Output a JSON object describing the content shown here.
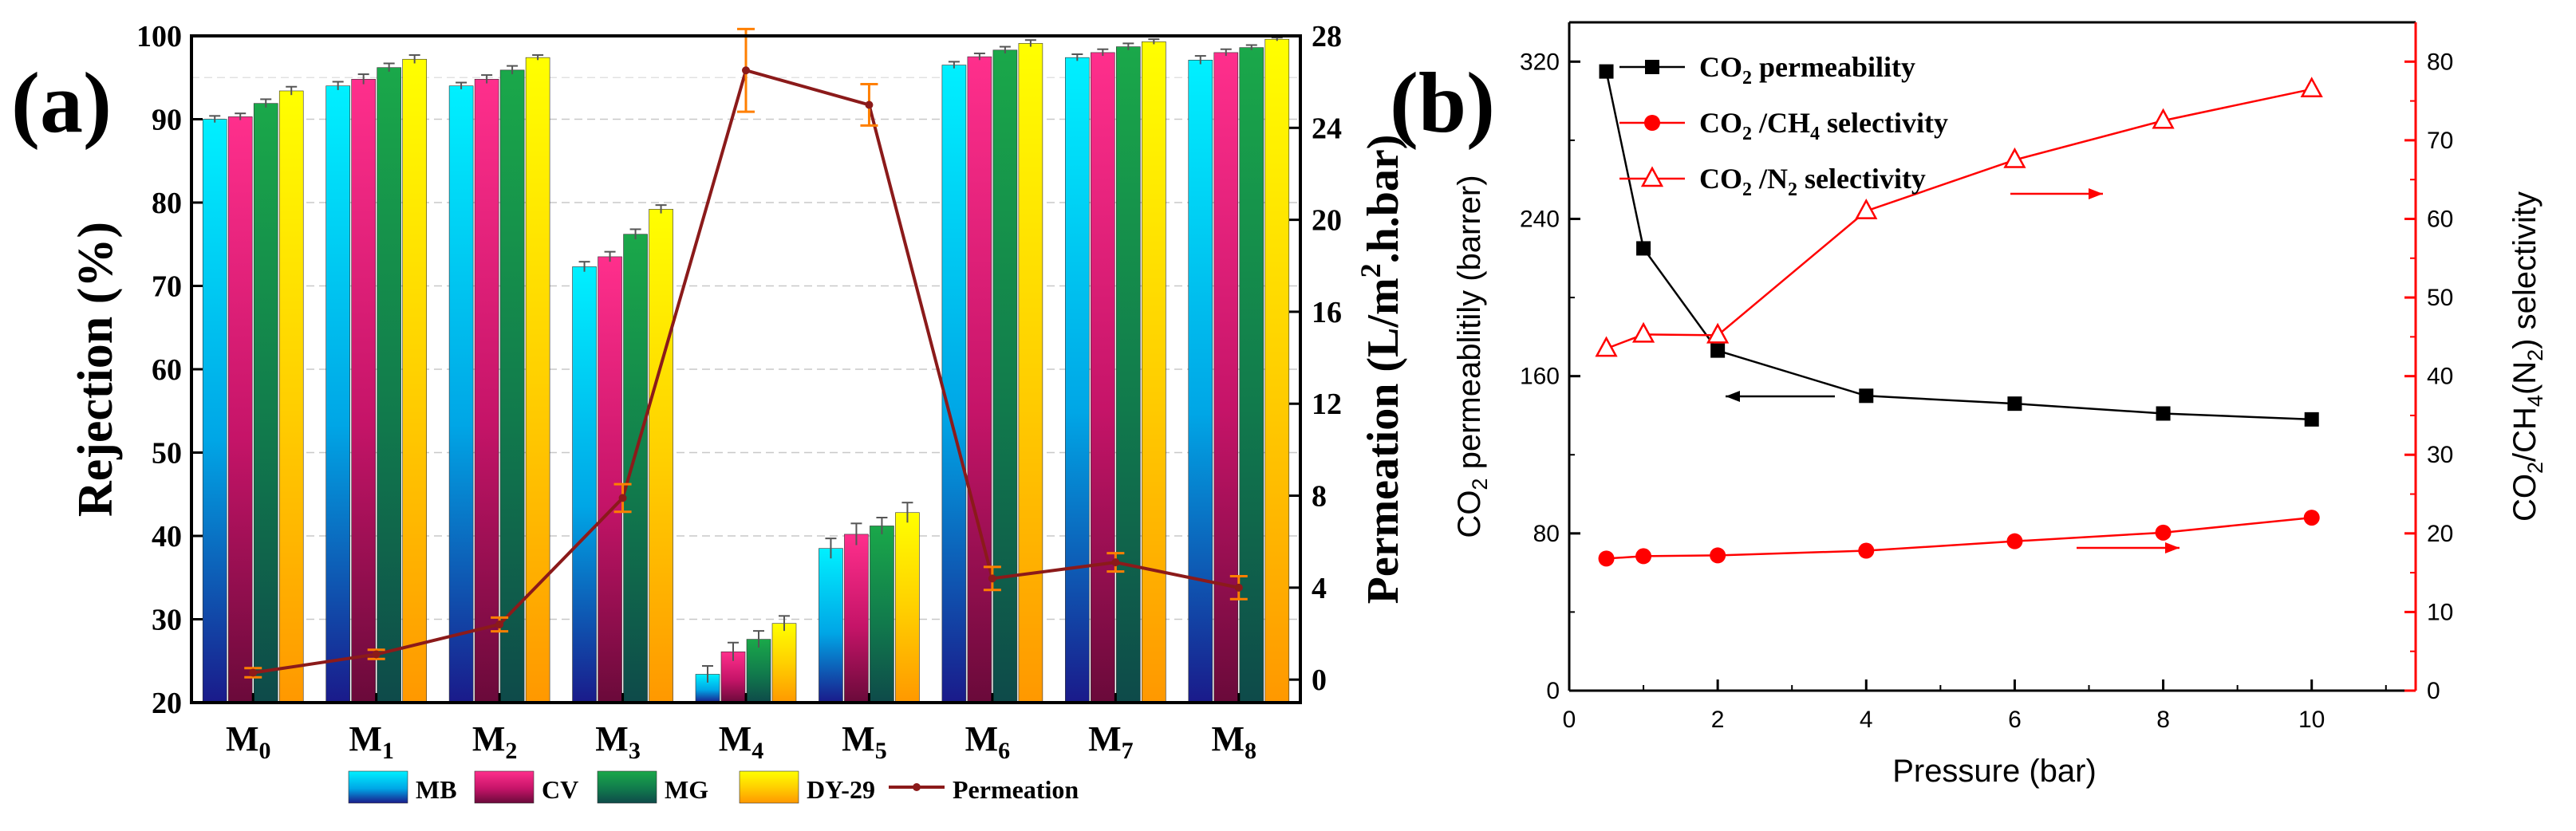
{
  "chart_data": [
    {
      "panel_label": "(a)",
      "type": "bar",
      "categories": [
        "M",
        "M",
        "M",
        "M",
        "M",
        "M",
        "M",
        "M",
        "M"
      ],
      "category_subscripts": [
        "0",
        "1",
        "2",
        "3",
        "4",
        "5",
        "6",
        "7",
        "8"
      ],
      "ylabel": "Rejection (%)",
      "ylim": [
        20,
        100
      ],
      "yticks": [
        20,
        30,
        40,
        50,
        60,
        70,
        80,
        90,
        100
      ],
      "y2label_parts": [
        "Permeation (L/m",
        "2",
        ".h.bar)"
      ],
      "y2lim": [
        -1,
        28
      ],
      "y2ticks": [
        0,
        4,
        8,
        12,
        16,
        20,
        24,
        28
      ],
      "series": [
        {
          "name": "MB",
          "values": [
            90,
            94,
            94,
            72.3,
            23.4,
            38.5,
            96.5,
            97.4,
            97.1
          ],
          "errors": [
            0.4,
            0.5,
            0.4,
            0.6,
            1.0,
            1.2,
            0.4,
            0.4,
            0.5
          ],
          "color_top": "#00f0ff",
          "color_bottom": "#1a1a8a"
        },
        {
          "name": "CV",
          "values": [
            90.3,
            94.8,
            94.8,
            73.5,
            26.1,
            40.2,
            97.5,
            98,
            98
          ],
          "errors": [
            0.4,
            0.6,
            0.5,
            0.6,
            1.1,
            1.3,
            0.4,
            0.4,
            0.4
          ],
          "color_top": "#ff2f8c",
          "color_bottom": "#6a0a3a"
        },
        {
          "name": "MG",
          "values": [
            91.9,
            96.2,
            95.9,
            76.2,
            27.6,
            41.2,
            98.3,
            98.7,
            98.6
          ],
          "errors": [
            0.5,
            0.5,
            0.5,
            0.6,
            1.0,
            1.0,
            0.4,
            0.4,
            0.3
          ],
          "color_top": "#1aa84a",
          "color_bottom": "#0e4a4a"
        },
        {
          "name": "DY-29",
          "values": [
            93.4,
            97.2,
            97.4,
            79.2,
            29.5,
            42.8,
            99.1,
            99.3,
            99.6
          ],
          "errors": [
            0.5,
            0.5,
            0.3,
            0.5,
            0.9,
            1.2,
            0.4,
            0.3,
            0.2
          ],
          "color_top": "#ffff00",
          "color_bottom": "#ff9800"
        }
      ],
      "line": {
        "name": "Permeation",
        "values": [
          0.3,
          1.1,
          2.4,
          7.9,
          26.5,
          25.0,
          4.4,
          5.1,
          4.0
        ],
        "errors": [
          0.2,
          0.2,
          0.3,
          0.6,
          1.8,
          0.9,
          0.5,
          0.4,
          0.5
        ],
        "color": "#8b1a1a",
        "errcolor": "#ff7f00"
      },
      "legend": [
        "MB",
        "CV",
        "MG",
        "DY-29",
        "Permeation"
      ]
    },
    {
      "panel_label": "(b)",
      "type": "line",
      "xlabel": "Pressure (bar)",
      "xlim": [
        0,
        11.4
      ],
      "xticks": [
        0,
        2,
        4,
        6,
        8,
        10
      ],
      "ylabel_parts": [
        "CO",
        "2",
        " permeablitily (barrer)"
      ],
      "ylim": [
        0,
        340
      ],
      "yticks": [
        0,
        80,
        160,
        240,
        320
      ],
      "y2label_parts": [
        "CO",
        "2",
        "/CH",
        "4",
        "(N",
        "2",
        ") selectivity"
      ],
      "y2lim": [
        0,
        85
      ],
      "y2ticks": [
        0,
        10,
        20,
        30,
        40,
        50,
        60,
        70,
        80
      ],
      "series": [
        {
          "name_parts": [
            "CO",
            "2",
            " permeability"
          ],
          "axis": "left",
          "marker": "square",
          "color": "#000000",
          "x": [
            0.5,
            1,
            2,
            4,
            6,
            8,
            10
          ],
          "y": [
            315,
            225,
            173,
            150,
            146,
            141,
            138
          ]
        },
        {
          "name_parts": [
            "CO",
            "2",
            " /CH",
            "4",
            " selectivity"
          ],
          "axis": "right",
          "marker": "circle",
          "color": "#ff0000",
          "x": [
            0.5,
            1,
            2,
            4,
            6,
            8,
            10
          ],
          "y": [
            16.8,
            17.1,
            17.2,
            17.8,
            19,
            20.1,
            22
          ]
        },
        {
          "name_parts": [
            "CO",
            "2",
            " /N",
            "2",
            " selectivity"
          ],
          "axis": "right",
          "marker": "open-triangle",
          "color": "#ff0000",
          "x": [
            0.5,
            1,
            2,
            4,
            6,
            8,
            10
          ],
          "y": [
            43.5,
            45.3,
            45.2,
            61,
            67.5,
            72.5,
            76.5
          ]
        }
      ]
    }
  ]
}
